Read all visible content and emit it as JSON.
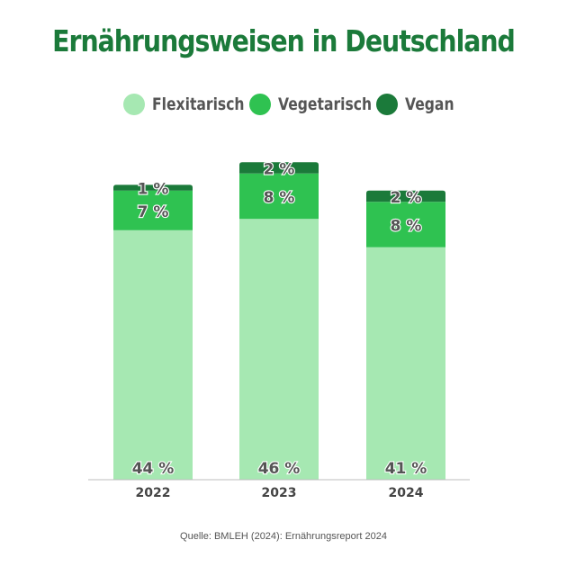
{
  "title": "Ernährungsweisen in Deutschland",
  "source": "Quelle: BMLEH (2024): Ernährungsreport 2024",
  "legend": [
    {
      "label": "Flexitarisch",
      "color": "#a6e8b2"
    },
    {
      "label": "Vegetarisch",
      "color": "#2fc251"
    },
    {
      "label": "Vegan",
      "color": "#1b7a3a"
    }
  ],
  "chart_data": {
    "type": "bar",
    "stacked": true,
    "title": "Ernährungsweisen in Deutschland",
    "categories": [
      "2022",
      "2023",
      "2024"
    ],
    "series": [
      {
        "name": "Flexitarisch",
        "color": "#a6e8b2",
        "values": [
          44,
          46,
          41
        ],
        "labels": [
          "44 %",
          "46 %",
          "41 %"
        ]
      },
      {
        "name": "Vegetarisch",
        "color": "#2fc251",
        "values": [
          7,
          8,
          8
        ],
        "labels": [
          "7 %",
          "8 %",
          "8 %"
        ]
      },
      {
        "name": "Vegan",
        "color": "#1b7a3a",
        "values": [
          1,
          2,
          2
        ],
        "labels": [
          "1 %",
          "2 %",
          "2 %"
        ]
      }
    ],
    "ylim": [
      0,
      56
    ],
    "grid": false,
    "legend_position": "top"
  }
}
